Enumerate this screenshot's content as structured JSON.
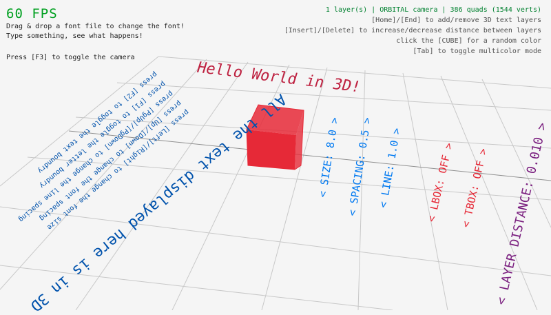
{
  "hud": {
    "fps": "60 FPS",
    "help_lines": [
      "Drag & drop a font file to change the font!",
      "Type something, see what happens!",
      "Press [F3] to toggle the camera"
    ],
    "status": "1 layer(s) | ORBITAL camera |  386 quads (1544 verts)",
    "right_lines": [
      "[Home]/[End] to add/remove 3D text layers",
      "[Insert]/[Delete] to increase/decrease distance between layers",
      "click the [CUBE] for a random color",
      "[Tab] to toggle multicolor mode"
    ]
  },
  "scene": {
    "title_text": "Hello World in 3D!",
    "main_text": "All the text displayed here is in 3D",
    "help_3d": [
      "press [F2] to toggle the text boundry",
      "press [F1] to toggle the letter boundry",
      "press [PgUp]/[PgDown] to change the line spacing",
      "press [Up]/[Down] to change the font spacing",
      "press [Left]/[Right] to change the font size"
    ],
    "options": [
      {
        "label": "< SIZE: 8.0 >",
        "color": "#0079f1"
      },
      {
        "label": "< SPACING: 0.5 >",
        "color": "#0079f1"
      },
      {
        "label": "< LINE: 1.0 >",
        "color": "#0079f1"
      },
      {
        "label": "< LBOX: OFF >",
        "color": "#e62937"
      },
      {
        "label": "< TBOX: OFF >",
        "color": "#e62937"
      },
      {
        "label": "< LAYER DISTANCE: 0.010 >",
        "color": "#7a1f7f"
      }
    ],
    "cube_color": "#e62937",
    "text_blue": "#0052ac",
    "title_color": "#be2140"
  }
}
